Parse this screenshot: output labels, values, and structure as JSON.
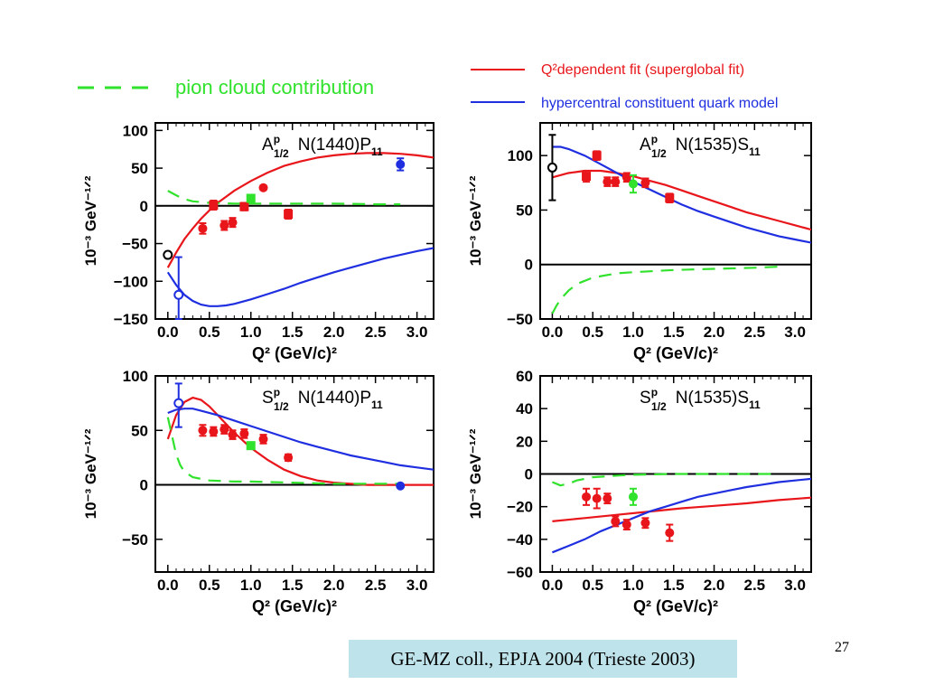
{
  "legend": {
    "pion": "pion cloud contribution",
    "red": "Q²dependent fit (superglobal fit)",
    "blue": "hypercentral constituent quark model",
    "colors": {
      "red": "#e8161b",
      "blue": "#1f2fe0",
      "green": "#31e22d"
    }
  },
  "citation": "GE-MZ coll., EPJA 2004 (Trieste 2003)",
  "page_number": "27",
  "chart_data": [
    {
      "type": "line",
      "label_main": "A",
      "label_sup": "p",
      "label_sub": "1/2",
      "label_state": "N(1440)P",
      "label_state_sub": "11",
      "xlabel": "Q² (GeV/c)²",
      "ylabel": "10⁻³ GeV⁻¹ᐟ²",
      "xlim": [
        -0.15,
        3.2
      ],
      "ylim": [
        -150,
        110
      ],
      "xticks": [
        "0.0",
        "0.5",
        "1.0",
        "1.5",
        "2.0",
        "2.5",
        "3.0"
      ],
      "yticks": [
        "100",
        "50",
        "0",
        "−50",
        "−100",
        "−150"
      ],
      "ytick_values": [
        100,
        50,
        0,
        -50,
        -100,
        -150
      ],
      "series": [
        {
          "color": "red",
          "style": "solid",
          "x": [
            0.0,
            0.1,
            0.2,
            0.3,
            0.4,
            0.5,
            0.6,
            0.8,
            1.0,
            1.2,
            1.4,
            1.6,
            1.8,
            2.0,
            2.2,
            2.4,
            2.6,
            2.8,
            3.0,
            3.2
          ],
          "y": [
            -82,
            -62,
            -44,
            -30,
            -17,
            -6,
            4,
            20,
            33,
            44,
            53,
            59,
            64,
            67,
            69,
            70,
            70,
            69,
            67,
            64
          ]
        },
        {
          "color": "blue",
          "style": "solid",
          "x": [
            0.0,
            0.1,
            0.2,
            0.3,
            0.4,
            0.5,
            0.6,
            0.7,
            0.8,
            1.0,
            1.2,
            1.4,
            1.6,
            1.8,
            2.0,
            2.2,
            2.4,
            2.6,
            2.8,
            3.0,
            3.2
          ],
          "y": [
            -88,
            -105,
            -118,
            -126,
            -131,
            -133,
            -133,
            -132,
            -130,
            -124,
            -117,
            -110,
            -102,
            -95,
            -88,
            -82,
            -76,
            -70,
            -65,
            -60,
            -56
          ]
        },
        {
          "color": "green",
          "style": "dashed",
          "x": [
            0.0,
            0.1,
            0.2,
            0.3,
            0.5,
            0.8,
            1.0,
            1.5,
            2.0,
            2.5,
            2.8
          ],
          "y": [
            20,
            14,
            9,
            6,
            4,
            3,
            3,
            3,
            3,
            2,
            2
          ]
        }
      ],
      "points": [
        {
          "x": 0.42,
          "y": -30,
          "err": 7,
          "color": "red",
          "marker": "circle"
        },
        {
          "x": 0.55,
          "y": 1,
          "err": 6,
          "color": "red",
          "marker": "square"
        },
        {
          "x": 0.68,
          "y": -26,
          "err": 6,
          "color": "red",
          "marker": "circle"
        },
        {
          "x": 0.78,
          "y": -22,
          "err": 6,
          "color": "red",
          "marker": "circle"
        },
        {
          "x": 0.92,
          "y": -1,
          "err": 5,
          "color": "red",
          "marker": "square"
        },
        {
          "x": 1.15,
          "y": 24,
          "err": 3,
          "color": "red",
          "marker": "circle"
        },
        {
          "x": 1.45,
          "y": -11,
          "err": 6,
          "color": "red",
          "marker": "square"
        },
        {
          "x": 1.0,
          "y": 10,
          "err": 3,
          "color": "green",
          "marker": "square"
        },
        {
          "x": 2.8,
          "y": 55,
          "err": 8,
          "color": "blue",
          "marker": "circle"
        },
        {
          "x": 0.13,
          "y": -118,
          "err": [
            50,
            32
          ],
          "color": "blue",
          "marker": "open"
        },
        {
          "x": 0.0,
          "y": -65,
          "err": 0,
          "color": "black",
          "marker": "open"
        }
      ]
    },
    {
      "type": "line",
      "label_main": "A",
      "label_sup": "p",
      "label_sub": "1/2",
      "label_state": "N(1535)S",
      "label_state_sub": "11",
      "xlabel": "Q² (GeV/c)²",
      "ylabel": "10⁻³ GeV⁻¹ᐟ²",
      "xlim": [
        -0.15,
        3.2
      ],
      "ylim": [
        -50,
        130
      ],
      "xticks": [
        "0.0",
        "0.5",
        "1.0",
        "1.5",
        "2.0",
        "2.5",
        "3.0"
      ],
      "yticks": [
        "100",
        "50",
        "0",
        "−50"
      ],
      "ytick_values": [
        100,
        50,
        0,
        -50
      ],
      "series": [
        {
          "color": "red",
          "style": "solid",
          "x": [
            0.0,
            0.2,
            0.4,
            0.6,
            0.8,
            1.0,
            1.2,
            1.4,
            1.6,
            1.8,
            2.0,
            2.2,
            2.4,
            2.6,
            2.8,
            3.0,
            3.2
          ],
          "y": [
            80,
            84,
            86,
            86,
            84,
            81,
            77,
            73,
            68,
            63,
            58,
            53,
            48,
            44,
            40,
            36,
            32
          ]
        },
        {
          "color": "blue",
          "style": "solid",
          "x": [
            0.0,
            0.1,
            0.2,
            0.4,
            0.6,
            0.8,
            1.0,
            1.2,
            1.4,
            1.6,
            1.8,
            2.0,
            2.2,
            2.4,
            2.6,
            2.8,
            3.0,
            3.2
          ],
          "y": [
            108,
            108,
            106,
            100,
            92,
            84,
            76,
            69,
            62,
            55,
            49,
            44,
            39,
            34,
            30,
            26,
            23,
            20
          ]
        },
        {
          "color": "green",
          "style": "dashed",
          "x": [
            0.0,
            0.05,
            0.1,
            0.2,
            0.3,
            0.5,
            0.8,
            1.0,
            1.5,
            2.0,
            2.5,
            2.8
          ],
          "y": [
            -45,
            -38,
            -32,
            -24,
            -18,
            -12,
            -8,
            -7,
            -5,
            -4,
            -3,
            -2
          ]
        }
      ],
      "points": [
        {
          "x": 0.42,
          "y": 81,
          "err": 5,
          "color": "red",
          "marker": "square"
        },
        {
          "x": 0.55,
          "y": 100,
          "err": 4,
          "color": "red",
          "marker": "square"
        },
        {
          "x": 0.68,
          "y": 76,
          "err": 4,
          "color": "red",
          "marker": "circle"
        },
        {
          "x": 0.78,
          "y": 76,
          "err": 4,
          "color": "red",
          "marker": "circle"
        },
        {
          "x": 0.92,
          "y": 80,
          "err": 4,
          "color": "red",
          "marker": "circle"
        },
        {
          "x": 1.15,
          "y": 75,
          "err": 4,
          "color": "red",
          "marker": "circle"
        },
        {
          "x": 1.45,
          "y": 61,
          "err": 4,
          "color": "red",
          "marker": "square"
        },
        {
          "x": 1.0,
          "y": 74,
          "err": 8,
          "color": "green",
          "marker": "circle"
        },
        {
          "x": 0.0,
          "y": 89,
          "err": 30,
          "color": "black",
          "marker": "open"
        }
      ]
    },
    {
      "type": "line",
      "label_main": "S",
      "label_sup": "p",
      "label_sub": "1/2",
      "label_state": "N(1440)P",
      "label_state_sub": "11",
      "xlabel": "Q² (GeV/c)²",
      "ylabel": "10⁻³ GeV⁻¹ᐟ²",
      "xlim": [
        -0.15,
        3.2
      ],
      "ylim": [
        -80,
        100
      ],
      "xticks": [
        "0.0",
        "0.5",
        "1.0",
        "1.5",
        "2.0",
        "2.5",
        "3.0"
      ],
      "yticks": [
        "100",
        "50",
        "0",
        "−50"
      ],
      "ytick_values": [
        100,
        50,
        0,
        -50
      ],
      "series": [
        {
          "color": "red",
          "style": "solid",
          "x": [
            0.0,
            0.1,
            0.2,
            0.3,
            0.4,
            0.5,
            0.6,
            0.7,
            0.8,
            1.0,
            1.2,
            1.4,
            1.6,
            1.8,
            2.0,
            2.2,
            2.4,
            2.6,
            2.8,
            3.0,
            3.2
          ],
          "y": [
            42,
            64,
            76,
            80,
            78,
            72,
            64,
            56,
            48,
            34,
            23,
            14,
            8,
            4,
            2,
            1,
            0,
            0,
            0,
            0,
            0
          ]
        },
        {
          "color": "blue",
          "style": "solid",
          "x": [
            0.0,
            0.1,
            0.2,
            0.3,
            0.4,
            0.6,
            0.8,
            1.0,
            1.2,
            1.4,
            1.6,
            1.8,
            2.0,
            2.2,
            2.4,
            2.6,
            2.8,
            3.0,
            3.2
          ],
          "y": [
            66,
            69,
            70,
            70,
            68,
            64,
            59,
            54,
            49,
            44,
            39,
            35,
            31,
            27,
            24,
            21,
            18,
            16,
            14
          ]
        },
        {
          "color": "green",
          "style": "dashed",
          "x": [
            0.0,
            0.05,
            0.1,
            0.15,
            0.2,
            0.3,
            0.5,
            0.8,
            1.0,
            1.5,
            2.0,
            2.5,
            2.8
          ],
          "y": [
            62,
            45,
            28,
            18,
            12,
            7,
            4,
            3,
            3,
            2,
            1,
            1,
            1
          ]
        }
      ],
      "points": [
        {
          "x": 0.42,
          "y": 50,
          "err": 5,
          "color": "red",
          "marker": "circle"
        },
        {
          "x": 0.55,
          "y": 49,
          "err": 4,
          "color": "red",
          "marker": "circle"
        },
        {
          "x": 0.68,
          "y": 51,
          "err": 4,
          "color": "red",
          "marker": "circle"
        },
        {
          "x": 0.78,
          "y": 46,
          "err": 4,
          "color": "red",
          "marker": "circle"
        },
        {
          "x": 0.92,
          "y": 47,
          "err": 4,
          "color": "red",
          "marker": "circle"
        },
        {
          "x": 1.15,
          "y": 42,
          "err": 4,
          "color": "red",
          "marker": "circle"
        },
        {
          "x": 1.45,
          "y": 25,
          "err": 3,
          "color": "red",
          "marker": "circle"
        },
        {
          "x": 1.0,
          "y": 36,
          "err": 3,
          "color": "green",
          "marker": "square"
        },
        {
          "x": 2.8,
          "y": -1,
          "err": 0,
          "color": "blue",
          "marker": "circle"
        },
        {
          "x": 0.13,
          "y": 75,
          "err": [
            18,
            22
          ],
          "color": "blue",
          "marker": "open"
        }
      ]
    },
    {
      "type": "line",
      "label_main": "S",
      "label_sup": "p",
      "label_sub": "1/2",
      "label_state": "N(1535)S",
      "label_state_sub": "11",
      "xlabel": "Q² (GeV/c)²",
      "ylabel": "10⁻³ GeV⁻¹ᐟ²",
      "xlim": [
        -0.15,
        3.2
      ],
      "ylim": [
        -60,
        60
      ],
      "xticks": [
        "0.0",
        "0.5",
        "1.0",
        "1.5",
        "2.0",
        "2.5",
        "3.0"
      ],
      "yticks": [
        "60",
        "40",
        "20",
        "0",
        "−20",
        "−40",
        "−60"
      ],
      "ytick_values": [
        60,
        40,
        20,
        0,
        -20,
        -40,
        -60
      ],
      "series": [
        {
          "color": "red",
          "style": "solid",
          "x": [
            0.0,
            0.4,
            0.8,
            1.2,
            1.6,
            2.0,
            2.4,
            2.8,
            3.2
          ],
          "y": [
            -29,
            -27,
            -25,
            -23,
            -21,
            -19.5,
            -18,
            -16,
            -14.5
          ]
        },
        {
          "color": "blue",
          "style": "solid",
          "x": [
            0.0,
            0.2,
            0.4,
            0.6,
            0.8,
            1.0,
            1.2,
            1.4,
            1.6,
            1.8,
            2.0,
            2.2,
            2.4,
            2.6,
            2.8,
            3.0,
            3.2
          ],
          "y": [
            -48,
            -44,
            -40,
            -35,
            -31,
            -27,
            -23,
            -20,
            -17,
            -14,
            -12,
            -10,
            -8,
            -6.5,
            -5,
            -4,
            -3
          ]
        },
        {
          "color": "green",
          "style": "dashed",
          "x": [
            0.0,
            0.1,
            0.2,
            0.3,
            0.5,
            0.8,
            1.0,
            1.5,
            2.0,
            2.5,
            2.8
          ],
          "y": [
            -5,
            -7,
            -6,
            -4,
            -2,
            -1,
            -0.5,
            0,
            0,
            0,
            0
          ]
        }
      ],
      "points": [
        {
          "x": 0.42,
          "y": -14,
          "err": 5,
          "color": "red",
          "marker": "circle"
        },
        {
          "x": 0.55,
          "y": -15,
          "err": 6,
          "color": "red",
          "marker": "circle"
        },
        {
          "x": 0.68,
          "y": -15,
          "err": 3,
          "color": "red",
          "marker": "circle"
        },
        {
          "x": 0.78,
          "y": -29,
          "err": 3,
          "color": "red",
          "marker": "circle"
        },
        {
          "x": 0.92,
          "y": -31,
          "err": 3,
          "color": "red",
          "marker": "circle"
        },
        {
          "x": 1.15,
          "y": -30,
          "err": 3,
          "color": "red",
          "marker": "circle"
        },
        {
          "x": 1.45,
          "y": -36,
          "err": 5,
          "color": "red",
          "marker": "circle"
        },
        {
          "x": 1.0,
          "y": -14,
          "err": 5,
          "color": "green",
          "marker": "circle"
        }
      ]
    }
  ]
}
